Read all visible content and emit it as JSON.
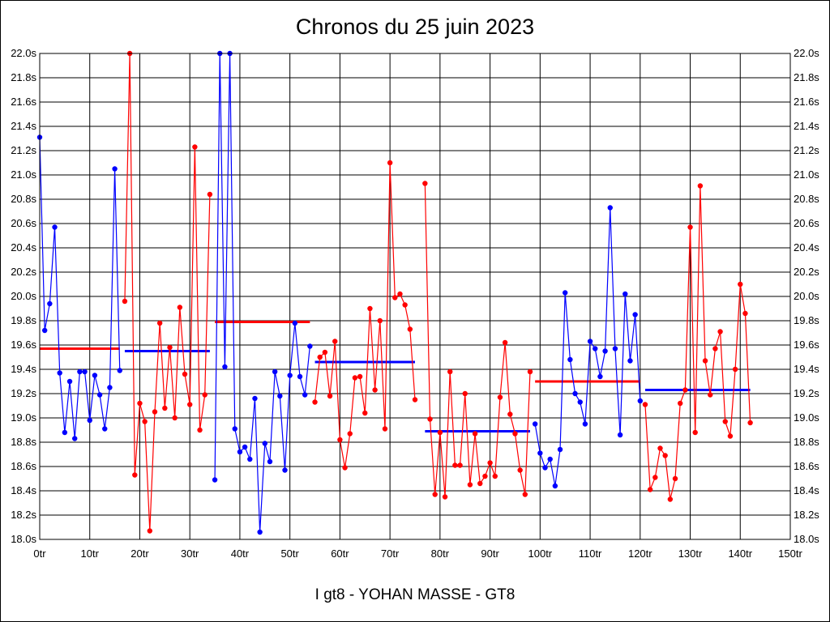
{
  "chart_data": {
    "type": "line",
    "title": "Chronos du 25 juin 2023",
    "footer": "I gt8 - YOHAN MASSE - GT8",
    "xlim": [
      0,
      150
    ],
    "ylim": [
      18.0,
      22.0
    ],
    "x_ticks": [
      0,
      10,
      20,
      30,
      40,
      50,
      60,
      70,
      80,
      90,
      100,
      110,
      120,
      130,
      140,
      150
    ],
    "x_tick_labels": [
      "0tr",
      "10tr",
      "20tr",
      "30tr",
      "40tr",
      "50tr",
      "60tr",
      "70tr",
      "80tr",
      "90tr",
      "100tr",
      "110tr",
      "120tr",
      "130tr",
      "140tr",
      "150tr"
    ],
    "y_ticks": [
      18.0,
      18.2,
      18.4,
      18.6,
      18.8,
      19.0,
      19.2,
      19.4,
      19.6,
      19.8,
      20.0,
      20.2,
      20.4,
      20.6,
      20.8,
      21.0,
      21.2,
      21.4,
      21.6,
      21.8,
      22.0
    ],
    "y_tick_labels": [
      "18.0s",
      "18.2s",
      "18.4s",
      "18.6s",
      "18.8s",
      "19.0s",
      "19.2s",
      "19.4s",
      "19.6s",
      "19.8s",
      "20.0s",
      "20.2s",
      "20.4s",
      "20.6s",
      "20.8s",
      "21.0s",
      "21.2s",
      "21.4s",
      "21.6s",
      "21.8s",
      "22.0s"
    ],
    "grid": true,
    "colors": {
      "blue": "#0000ff",
      "red": "#ff0000",
      "grid": "#000000"
    },
    "series": [
      {
        "name": "stint-1",
        "color": "blue",
        "x_start": 0,
        "values": [
          21.31,
          19.72,
          19.94,
          20.57,
          19.37,
          18.88,
          19.3,
          18.83,
          19.38,
          19.38,
          18.98,
          19.35,
          19.19,
          18.91,
          19.25,
          21.05,
          19.39
        ]
      },
      {
        "name": "stint-2",
        "color": "red",
        "x_start": 17,
        "values": [
          19.96,
          22.0,
          18.53,
          19.12,
          18.97,
          18.07,
          19.05,
          19.78,
          19.08,
          19.58,
          19.0,
          19.91,
          19.36,
          19.11,
          21.23,
          18.9,
          19.19,
          20.84
        ]
      },
      {
        "name": "stint-3",
        "color": "blue",
        "x_start": 35,
        "values": [
          18.49,
          22.0,
          19.42,
          22.0,
          18.91,
          18.72,
          18.76,
          18.66,
          19.16,
          18.06,
          18.79,
          18.64,
          19.38,
          19.18,
          18.57,
          19.35,
          19.78,
          19.34,
          19.19,
          19.59
        ]
      },
      {
        "name": "stint-4",
        "color": "red",
        "x_start": 55,
        "values": [
          19.13,
          19.5,
          19.54,
          19.18,
          19.63,
          18.82,
          18.59,
          18.87,
          19.33,
          19.34,
          19.04,
          19.9,
          19.23,
          19.8,
          18.91,
          21.1,
          19.99,
          20.02,
          19.93,
          19.73,
          19.15,
          null,
          20.93,
          18.99,
          18.37,
          18.88,
          18.35,
          19.38,
          18.61,
          18.61,
          19.2,
          18.45,
          18.87,
          18.46,
          18.52,
          18.63,
          18.52,
          19.17,
          19.62,
          19.03,
          18.87,
          18.57,
          18.37,
          19.38
        ]
      },
      {
        "name": "stint-5",
        "color": "blue",
        "x_start": 99,
        "values": [
          18.95,
          18.71,
          18.59,
          18.66,
          18.44,
          18.74,
          20.03,
          19.48,
          19.2,
          19.13,
          18.95,
          19.63,
          19.57,
          19.34,
          19.55,
          20.73,
          19.57,
          18.86,
          20.02,
          19.47,
          19.85,
          19.14
        ]
      },
      {
        "name": "stint-6",
        "color": "red",
        "x_start": 121,
        "values": [
          19.11,
          18.41,
          18.51,
          18.75,
          18.69,
          18.33,
          18.5,
          19.12,
          19.23,
          20.57,
          18.88,
          20.91,
          19.47,
          19.19,
          19.57,
          19.71,
          18.97,
          18.85,
          19.4,
          20.1,
          19.86,
          18.96
        ]
      }
    ],
    "averages": [
      {
        "color": "red",
        "x_from": 0,
        "x_to": 16,
        "value": 19.57
      },
      {
        "color": "blue",
        "x_from": 17,
        "x_to": 34,
        "value": 19.55
      },
      {
        "color": "red",
        "x_from": 35,
        "x_to": 54,
        "value": 19.79
      },
      {
        "color": "blue",
        "x_from": 55,
        "x_to": 75,
        "value": 19.46
      },
      {
        "color": "blue",
        "x_from": 77,
        "x_to": 98,
        "value": 18.89
      },
      {
        "color": "red",
        "x_from": 99,
        "x_to": 120,
        "value": 19.3
      },
      {
        "color": "blue",
        "x_from": 121,
        "x_to": 142,
        "value": 19.23
      }
    ]
  }
}
